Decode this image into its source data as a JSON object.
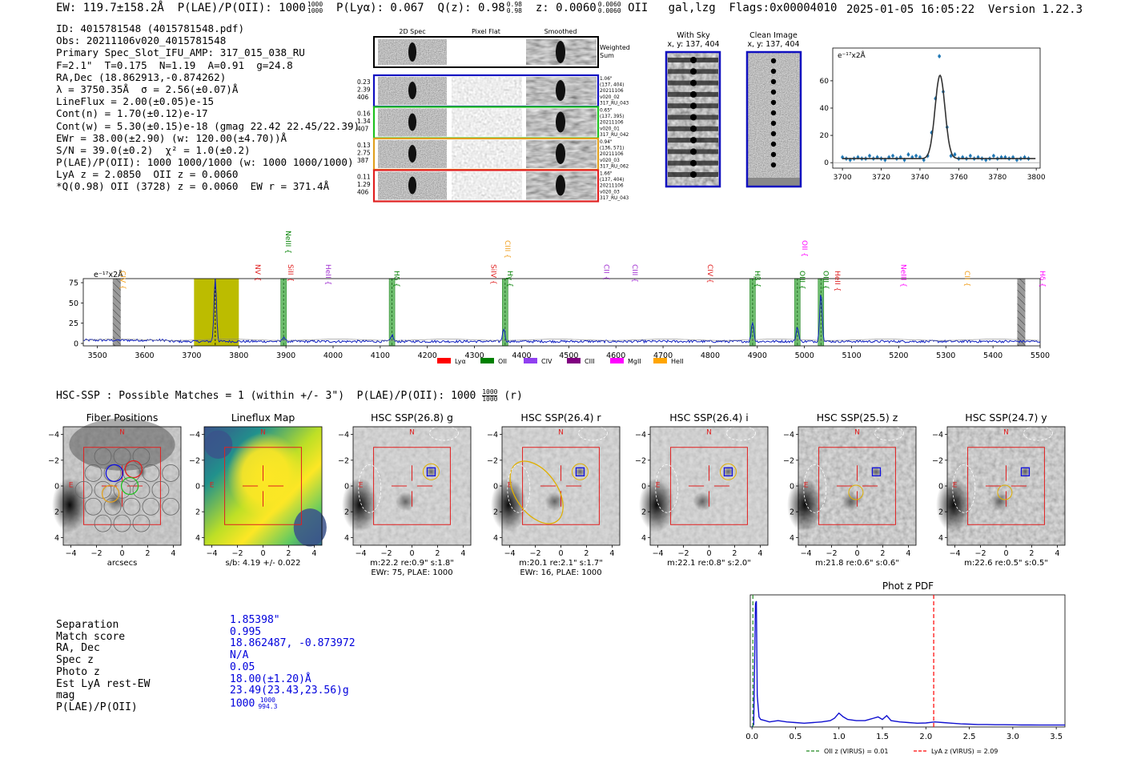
{
  "header": {
    "ew": "EW: 119.7±158.2Å",
    "plae": "P(LAE)/P(OII): 1000",
    "plae_hi": "1000",
    "plae_lo": "1000",
    "plya": "P(Lyα): 0.067",
    "qz": "Q(z): 0.98",
    "qz_hi": "0.98",
    "qz_lo": "0.98",
    "z": "z: 0.0060",
    "z_hi": "0.0060",
    "z_lo": "0.0060",
    "z_line": "OII",
    "class": "gal,lzg",
    "flags": "Flags:0x00004010",
    "timestamp": "2025-01-05 16:05:22",
    "version": "Version 1.22.3"
  },
  "summary": [
    "ID: 4015781548 (4015781548.pdf)",
    "Obs: 20211106v020_4015781548",
    "Primary Spec_Slot_IFU_AMP: 317_015_038_RU",
    "F=2.1\"  T=0.175  N=1.19  A=0.91  g=24.8",
    "RA,Dec (18.862913,-0.874262)",
    "λ = 3750.35Å  σ = 2.56(±0.07)Å",
    "LineFlux = 2.00(±0.05)e-15",
    "Cont(n) = 1.70(±0.12)e-17",
    "Cont(w) = 5.30(±0.15)e-18 (gmag 22.42 22.45/22.39)",
    "EWr = 38.00(±2.90) (w: 120.00(±4.70))Å",
    "S/N = 39.0(±0.2)  χ² = 1.0(±0.2)",
    "P(LAE)/P(OII): 1000 1000/1000 (w: 1000 1000/1000)",
    "LyA z = 2.0850  OII z = 0.0060",
    "*Q(0.98) OII (3728) z = 0.0060  EW r = 371.4Å"
  ],
  "cutouts": {
    "col_titles": [
      "2D Spec",
      "Pixel Flat",
      "Smoothed"
    ],
    "weighted_label_1": "Weighted",
    "weighted_label_2": "Sum",
    "rows": [
      {
        "left": [
          "0.23",
          "2.39",
          "406"
        ],
        "right": [
          "1.06\"",
          "(137, 404)",
          "20211106",
          "v020_02",
          "317_RU_043"
        ],
        "color": "#1010c0"
      },
      {
        "left": [
          "0.16",
          "1.34",
          "407"
        ],
        "right": [
          "0.65\"",
          "(137, 395)",
          "20211106",
          "v020_01",
          "317_RU_042"
        ],
        "color": "#20c020"
      },
      {
        "left": [
          "0.13",
          "2.75",
          "387"
        ],
        "right": [
          "0.94\"",
          "(136, 571)",
          "20211106",
          "v020_03",
          "317_RU_062"
        ],
        "color": "#e0a020"
      },
      {
        "left": [
          "0.11",
          "1.29",
          "406"
        ],
        "right": [
          "1.66\"",
          "(137, 404)",
          "20211106",
          "v020_03",
          "317_RU_043"
        ],
        "color": "#e02020"
      }
    ]
  },
  "stamps": {
    "with_sky_title": "With Sky",
    "with_sky_xy": "x, y: 137, 404",
    "clean_title": "Clean Image",
    "clean_xy": "x, y: 137, 404"
  },
  "line_fit": {
    "ylabel": "e⁻¹⁷x2Å",
    "x_ticks": [
      3700,
      3720,
      3740,
      3760,
      3780,
      3800
    ],
    "y_ticks": [
      0,
      20,
      40,
      60
    ],
    "xlim": [
      3695,
      3802
    ],
    "ylim": [
      -4,
      84
    ],
    "points": [
      [
        3700,
        4
      ],
      [
        3702,
        3
      ],
      [
        3704,
        2
      ],
      [
        3706,
        3
      ],
      [
        3708,
        4
      ],
      [
        3710,
        3
      ],
      [
        3712,
        3
      ],
      [
        3714,
        5
      ],
      [
        3716,
        3
      ],
      [
        3718,
        4
      ],
      [
        3720,
        3
      ],
      [
        3722,
        2
      ],
      [
        3724,
        4
      ],
      [
        3726,
        5
      ],
      [
        3728,
        3
      ],
      [
        3730,
        4
      ],
      [
        3732,
        2
      ],
      [
        3734,
        6
      ],
      [
        3736,
        4
      ],
      [
        3738,
        5
      ],
      [
        3740,
        4
      ],
      [
        3742,
        2
      ],
      [
        3744,
        5
      ],
      [
        3746,
        22
      ],
      [
        3748,
        47
      ],
      [
        3750,
        78
      ],
      [
        3752,
        52
      ],
      [
        3754,
        26
      ],
      [
        3756,
        5
      ],
      [
        3758,
        6
      ],
      [
        3760,
        3
      ],
      [
        3762,
        4
      ],
      [
        3764,
        3
      ],
      [
        3766,
        5
      ],
      [
        3768,
        3
      ],
      [
        3770,
        4
      ],
      [
        3772,
        3
      ],
      [
        3774,
        2
      ],
      [
        3776,
        3
      ],
      [
        3778,
        5
      ],
      [
        3780,
        3
      ],
      [
        3782,
        4
      ],
      [
        3784,
        4
      ],
      [
        3786,
        3
      ],
      [
        3788,
        4
      ],
      [
        3790,
        2
      ],
      [
        3792,
        3
      ],
      [
        3794,
        4
      ],
      [
        3796,
        3
      ]
    ],
    "gauss_mu": 3750.35,
    "gauss_sigma": 2.56,
    "gauss_amp": 61,
    "gauss_cont": 3
  },
  "spectrum": {
    "ylabel": "e⁻¹⁷x2Å",
    "xlim": [
      3470,
      5500
    ],
    "ylim": [
      -3,
      80
    ],
    "x_ticks": [
      3500,
      3600,
      3700,
      3800,
      3900,
      4000,
      4100,
      4200,
      4300,
      4400,
      4500,
      4600,
      4700,
      4800,
      4900,
      5000,
      5100,
      5200,
      5300,
      5400,
      5500
    ],
    "y_ticks": [
      0,
      25,
      50,
      75
    ],
    "peaks": [
      [
        3750,
        78,
        2.6
      ],
      [
        3895,
        6,
        2.5
      ],
      [
        4125,
        8,
        2.5
      ],
      [
        4362,
        16,
        2.5
      ],
      [
        4890,
        24,
        2.6
      ],
      [
        4985,
        18,
        2.6
      ],
      [
        5035,
        60,
        2.6
      ]
    ],
    "lines": [
      {
        "label": "CIV",
        "wave": 3544,
        "color": "#f0a020",
        "row": 3
      },
      {
        "label": "NV",
        "wave": 3830,
        "color": "#e02020",
        "row": 2
      },
      {
        "label": "SiII",
        "wave": 3900,
        "color": "#e02020",
        "row": 2
      },
      {
        "label": "NeIII",
        "wave": 3895,
        "color": "#008000",
        "row": 0
      },
      {
        "label": "HeII",
        "wave": 3980,
        "color": "#a030d0",
        "row": 2
      },
      {
        "label": "Hδ",
        "wave": 4125,
        "color": "#008000",
        "row": 3
      },
      {
        "label": "SiIV",
        "wave": 4330,
        "color": "#e02020",
        "row": 2
      },
      {
        "label": "CIII",
        "wave": 4360,
        "color": "#f0a020",
        "row": 1
      },
      {
        "label": "Hγ",
        "wave": 4365,
        "color": "#008000",
        "row": 3
      },
      {
        "label": "CII",
        "wave": 4570,
        "color": "#a030d0",
        "row": 2
      },
      {
        "label": "CIII",
        "wave": 4630,
        "color": "#a030d0",
        "row": 2
      },
      {
        "label": "CIV",
        "wave": 4790,
        "color": "#e02020",
        "row": 2
      },
      {
        "label": "Hβ",
        "wave": 4890,
        "color": "#008000",
        "row": 3
      },
      {
        "label": "OII",
        "wave": 4990,
        "color": "#ff00ff",
        "row": 1
      },
      {
        "label": "OIII",
        "wave": 4985,
        "color": "#008000",
        "row": 3
      },
      {
        "label": "OIII",
        "wave": 5035,
        "color": "#008000",
        "row": 3
      },
      {
        "label": "HeII",
        "wave": 5060,
        "color": "#e02020",
        "row": 3
      },
      {
        "label": "NeIII",
        "wave": 5200,
        "color": "#ff00ff",
        "row": 2
      },
      {
        "label": "CII",
        "wave": 5335,
        "color": "#f0a020",
        "row": 3
      },
      {
        "label": "Hδ",
        "wave": 5495,
        "color": "#ff00ff",
        "row": 3
      }
    ],
    "green_bands": [
      3895,
      4125,
      4365,
      4890,
      4985,
      5035
    ],
    "yellow_band": [
      3705,
      3800
    ],
    "gray_hatched": [
      3541,
      5460
    ],
    "legend": [
      {
        "label": "Lyα",
        "color": "#ff0000"
      },
      {
        "label": "OII",
        "color": "#008000"
      },
      {
        "label": "CIV",
        "color": "#9040f0"
      },
      {
        "label": "CIII",
        "color": "#800080"
      },
      {
        "label": "MgII",
        "color": "#ff00ff"
      },
      {
        "label": "HeII",
        "color": "#ffa500"
      }
    ]
  },
  "hsc": {
    "title": "HSC-SSP : Possible Matches = 1 (within +/- 3\")  P(LAE)/P(OII): 1000",
    "title_frac_hi": "1000",
    "title_frac_lo": "1000",
    "title_suffix": "(r)",
    "tick_labels": [
      "−4",
      "−2",
      "0",
      "2",
      "4"
    ],
    "north": "N",
    "east": "E",
    "panels": [
      {
        "title": "Fiber Positions",
        "captions": [
          "arcsecs"
        ]
      },
      {
        "title": "Lineflux Map",
        "captions": [
          "s/b: 4.19 +/- 0.022"
        ]
      },
      {
        "title": "HSC SSP(26.8) g",
        "captions": [
          "m:22.2  re:0.9\"  s:1.8\"",
          "EWr: 75, PLAE: 1000"
        ]
      },
      {
        "title": "HSC SSP(26.4) r",
        "captions": [
          "m:20.1  re:2.1\"  s:1.7\"",
          "EWr: 16, PLAE: 1000"
        ]
      },
      {
        "title": "HSC SSP(26.4) i",
        "captions": [
          "m:22.1  re:0.8\"  s:2.0\""
        ]
      },
      {
        "title": "HSC SSP(25.5) z",
        "captions": [
          "m:21.8  re:0.6\"  s:0.6\""
        ]
      },
      {
        "title": "HSC SSP(24.7) y",
        "captions": [
          "m:22.6  re:0.5\"  s:0.5\""
        ]
      }
    ]
  },
  "match": {
    "labels": [
      "Separation",
      "Match score",
      "RA, Dec",
      "Spec z",
      "Photo z",
      "Est LyA rest-EW",
      "mag",
      "P(LAE)/P(OII)"
    ],
    "values": [
      "1.85398\"",
      "0.995",
      "18.862487, -0.873972",
      "N/A",
      "0.05",
      "18.00(±1.20)Å",
      "23.49(23.43,23.56)g",
      "1000"
    ],
    "plae_frac_hi": "1000",
    "plae_frac_lo": "994.3"
  },
  "chart_data": [
    {
      "type": "scatter",
      "title": "Emission line fit",
      "ylabel": "e⁻¹⁷x2Å",
      "xlim": [
        3695,
        3802
      ],
      "ylim": [
        -4,
        84
      ]
    },
    {
      "type": "line",
      "title": "Full spectrum",
      "xlim": [
        3470,
        5500
      ],
      "ylim": [
        -3,
        80
      ]
    },
    {
      "type": "line",
      "title": "Phot z PDF",
      "xlim": [
        -0.02,
        3.6
      ],
      "x_ticks": [
        0.0,
        0.5,
        1.0,
        1.5,
        2.0,
        2.5,
        3.0,
        3.5
      ],
      "x": [
        0.0,
        0.02,
        0.04,
        0.05,
        0.06,
        0.08,
        0.1,
        0.15,
        0.2,
        0.3,
        0.4,
        0.5,
        0.6,
        0.7,
        0.8,
        0.9,
        0.95,
        1.0,
        1.05,
        1.1,
        1.2,
        1.3,
        1.35,
        1.4,
        1.45,
        1.5,
        1.55,
        1.6,
        1.7,
        1.8,
        1.9,
        2.0,
        2.1,
        2.2,
        2.3,
        2.4,
        2.5,
        2.6,
        2.7,
        2.8,
        2.9,
        3.0,
        3.1,
        3.2,
        3.3,
        3.4,
        3.5,
        3.6
      ],
      "values": [
        0.0,
        0.02,
        0.98,
        1.0,
        0.25,
        0.08,
        0.06,
        0.05,
        0.04,
        0.05,
        0.04,
        0.035,
        0.03,
        0.035,
        0.04,
        0.05,
        0.07,
        0.11,
        0.08,
        0.06,
        0.05,
        0.05,
        0.06,
        0.07,
        0.08,
        0.06,
        0.09,
        0.05,
        0.04,
        0.035,
        0.03,
        0.032,
        0.04,
        0.035,
        0.03,
        0.025,
        0.022,
        0.02,
        0.02,
        0.018,
        0.018,
        0.017,
        0.016,
        0.016,
        0.015,
        0.015,
        0.015,
        0.015
      ],
      "ylim": [
        0,
        1.05
      ],
      "vlines": [
        {
          "label": "OII z (VIRUS) = 0.01",
          "x": 0.01,
          "color": "#228b22"
        },
        {
          "label": "LyA z (VIRUS) = 2.09",
          "x": 2.09,
          "color": "#ff0000"
        }
      ]
    }
  ]
}
